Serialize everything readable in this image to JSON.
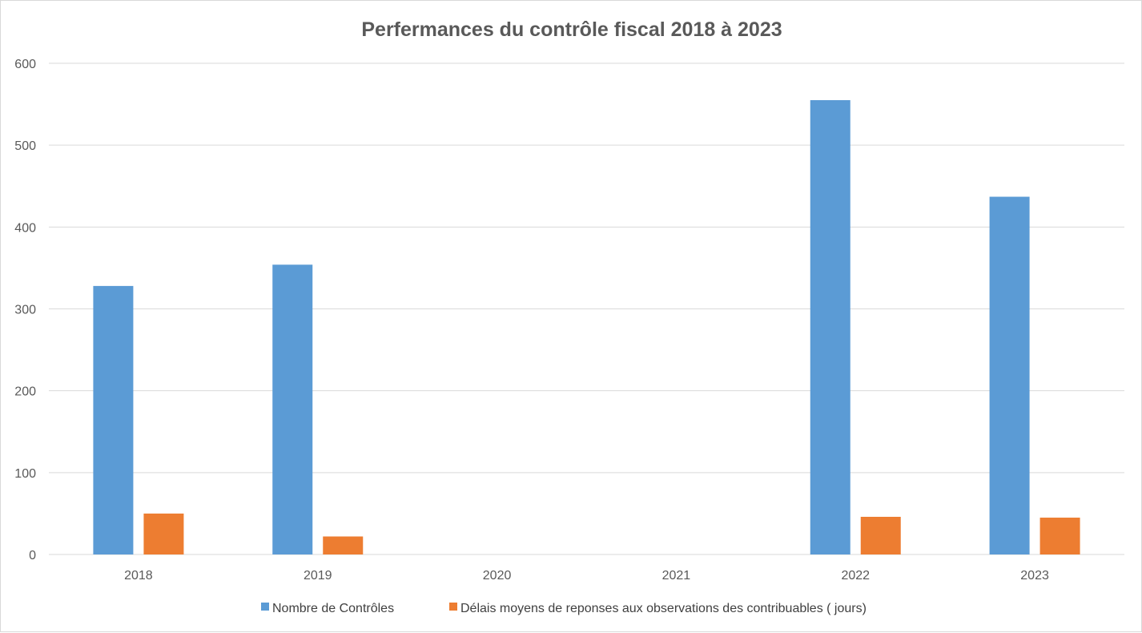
{
  "chart_data": {
    "type": "bar",
    "title": "Perfermances du contrôle fiscal 2018 à 2023",
    "xlabel": "",
    "ylabel": "",
    "categories": [
      "2018",
      "2019",
      "2020",
      "2021",
      "2022",
      "2023"
    ],
    "ylim": [
      0,
      600
    ],
    "yticks": [
      "0",
      "100",
      "200",
      "300",
      "400",
      "500",
      "600"
    ],
    "grid": true,
    "legend_position": "bottom",
    "series": [
      {
        "name": "Nombre de Contrôles",
        "color": "#5b9bd5",
        "values": [
          328,
          354,
          null,
          null,
          555,
          437
        ]
      },
      {
        "name": "Délais moyens de reponses aux observations des contribuables ( jours)",
        "color": "#ed7d31",
        "values": [
          50,
          22,
          null,
          null,
          46,
          45
        ]
      }
    ]
  }
}
